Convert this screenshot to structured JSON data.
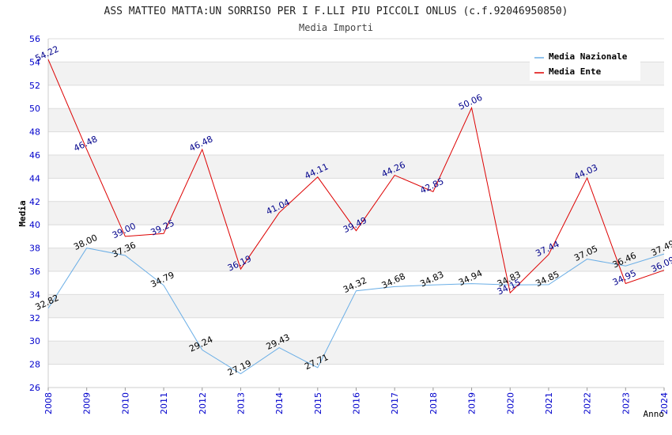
{
  "chart_data": {
    "type": "line",
    "title": "ASS MATTEO MATTA:UN SORRISO PER I F.LLI PIU PICCOLI ONLUS (c.f.92046950850)",
    "subtitle": "Media Importi",
    "xlabel": "Anno",
    "ylabel": "Media",
    "ylim": [
      26,
      56
    ],
    "y_ticks": [
      "26",
      "28",
      "30",
      "32",
      "34",
      "36",
      "38",
      "40",
      "42",
      "44",
      "46",
      "48",
      "50",
      "52",
      "54",
      "56"
    ],
    "x": [
      "2008",
      "2009",
      "2010",
      "2011",
      "2012",
      "2013",
      "2014",
      "2015",
      "2016",
      "2017",
      "2018",
      "2019",
      "2020",
      "2021",
      "2022",
      "2023",
      "2024"
    ],
    "series": [
      {
        "name": "Media Nazionale",
        "color": "#6aaee6",
        "label_color": "#000000",
        "values": [
          32.82,
          38.0,
          37.36,
          34.79,
          29.24,
          27.19,
          29.43,
          27.71,
          34.32,
          34.68,
          34.83,
          34.94,
          34.83,
          34.85,
          37.05,
          36.46,
          37.49
        ],
        "labels": [
          "32.82",
          "38.00",
          "37.36",
          "34.79",
          "29.24",
          "27.19",
          "29.43",
          "27.71",
          "34.32",
          "34.68",
          "34.83",
          "34.94",
          "34.83",
          "34.85",
          "37.05",
          "36.46",
          "37.49"
        ]
      },
      {
        "name": "Media Ente",
        "color": "#dd0000",
        "label_color": "#00008b",
        "values": [
          54.22,
          46.48,
          39.0,
          39.25,
          46.48,
          36.19,
          41.04,
          44.11,
          39.49,
          44.26,
          42.85,
          50.06,
          34.15,
          37.44,
          44.03,
          34.95,
          36.09
        ],
        "labels": [
          "54.22",
          "46.48",
          "39.00",
          "39.25",
          "46.48",
          "36.19",
          "41.04",
          "44.11",
          "39.49",
          "44.26",
          "42.85",
          "50.06",
          "34.15",
          "37.44",
          "44.03",
          "34.95",
          "36.09"
        ]
      }
    ],
    "grid": true,
    "legend_position": "top-right",
    "tick_color": "#0000cc"
  }
}
